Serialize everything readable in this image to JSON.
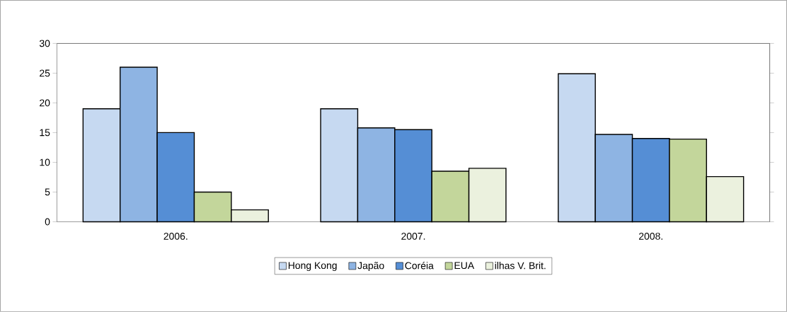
{
  "chart_data": {
    "type": "bar",
    "categories": [
      "2006.",
      "2007.",
      "2008."
    ],
    "series": [
      {
        "name": "Hong Kong",
        "color": "#c6d9f1",
        "values": [
          19,
          19,
          24.9
        ]
      },
      {
        "name": "Japão",
        "color": "#8eb4e3",
        "values": [
          26,
          15.8,
          14.7
        ]
      },
      {
        "name": "Coréia",
        "color": "#558ed5",
        "values": [
          15,
          15.5,
          14
        ]
      },
      {
        "name": "EUA",
        "color": "#c3d69b",
        "values": [
          5,
          8.5,
          13.9
        ]
      },
      {
        "name": "ilhas V. Brit.",
        "color": "#ebf1de",
        "values": [
          2,
          9,
          7.6
        ]
      }
    ],
    "ylim": [
      0,
      30
    ],
    "yticks": [
      0,
      5,
      10,
      15,
      20,
      25,
      30
    ],
    "legend": "bottom",
    "grid": false
  }
}
